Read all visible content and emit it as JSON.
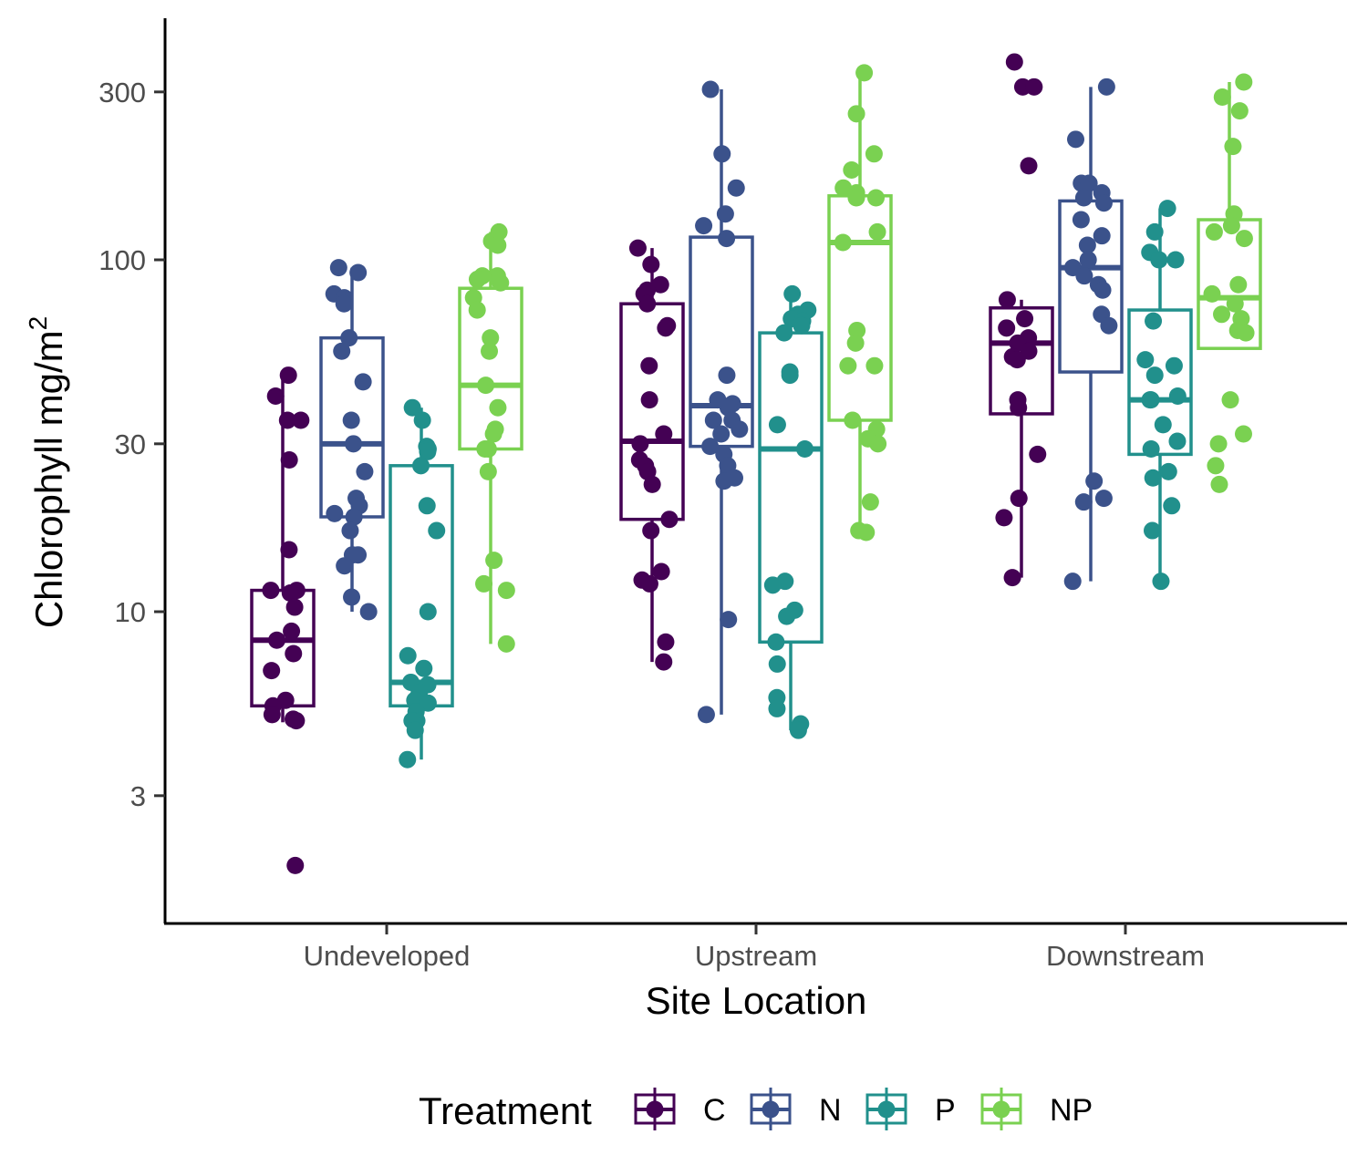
{
  "chart_data": {
    "type": "boxplot",
    "title": "",
    "xlabel": "Site Location",
    "ylabel": {
      "text": "Chlorophyll  mg/m",
      "superscript": "2"
    },
    "y_scale": "log10",
    "ylim": [
      1.75,
      420
    ],
    "y_ticks": [
      3,
      10,
      30,
      100,
      300
    ],
    "y_tick_labels": [
      "3",
      "10",
      "30",
      "100",
      "300"
    ],
    "categories": [
      "Undeveloped",
      "Upstream",
      "Downstream"
    ],
    "grid": false,
    "legend": {
      "title": "Treatment",
      "position": "bottom"
    },
    "series": [
      {
        "name": "C",
        "color": "#440154",
        "boxes": [
          {
            "min": 4.85,
            "q1": 5.4,
            "median": 8.3,
            "q3": 11.5,
            "max": 47
          },
          {
            "min": 7.2,
            "q1": 18.3,
            "median": 30.5,
            "q3": 75,
            "max": 108
          },
          {
            "min": 12.5,
            "q1": 36.5,
            "median": 58,
            "q3": 73,
            "max": 77
          }
        ],
        "points": [
          [
            47,
            41,
            35,
            35,
            27,
            15,
            11.5,
            11.5,
            11.3,
            10.3,
            8.8,
            8.3,
            7.6,
            6.8,
            5.6,
            5.4,
            5.1,
            4.95,
            4.9,
            1.9
          ],
          [
            108,
            97,
            85,
            82,
            80,
            75,
            65,
            64,
            50,
            40,
            32,
            30,
            27,
            26,
            25,
            23,
            18.3,
            17,
            13,
            12.3,
            12,
            8.2,
            7.2
          ],
          [
            365,
            310,
            310,
            185,
            77,
            68,
            64,
            60,
            58,
            55,
            53,
            52,
            40,
            38,
            28,
            21,
            18.5,
            12.5
          ]
        ]
      },
      {
        "name": "N",
        "color": "#3b528b",
        "boxes": [
          {
            "min": 10,
            "q1": 18.6,
            "median": 30,
            "q3": 60,
            "max": 95
          },
          {
            "min": 5.1,
            "q1": 29.5,
            "median": 38.5,
            "q3": 116,
            "max": 305
          },
          {
            "min": 12.2,
            "q1": 48,
            "median": 95,
            "q3": 147,
            "max": 310
          }
        ],
        "points": [
          [
            95,
            92,
            80,
            78,
            75,
            60,
            55,
            45,
            35,
            30,
            25,
            21,
            20,
            19,
            18.6,
            17,
            14.5,
            14.5,
            13.5,
            11,
            10
          ],
          [
            305,
            200,
            160,
            135,
            125,
            115,
            47,
            40,
            39,
            38,
            35,
            35,
            33,
            32,
            29.5,
            28,
            26,
            24,
            23.5,
            9.5,
            5.1
          ],
          [
            310,
            220,
            165,
            165,
            155,
            150,
            145,
            130,
            117,
            110,
            100,
            95,
            90,
            85,
            82,
            70,
            65,
            23.5,
            21,
            20.5,
            12.2
          ]
        ]
      },
      {
        "name": "P",
        "color": "#21908c",
        "boxes": [
          {
            "min": 3.8,
            "q1": 5.4,
            "median": 6.3,
            "q3": 26,
            "max": 38
          },
          {
            "min": 4.6,
            "q1": 8.2,
            "median": 29,
            "q3": 62,
            "max": 80
          },
          {
            "min": 12.2,
            "q1": 28,
            "median": 40,
            "q3": 72,
            "max": 140
          }
        ],
        "points": [
          [
            38,
            35,
            29.5,
            29,
            28.5,
            26,
            20,
            17,
            10,
            7.5,
            6.9,
            6.3,
            6.2,
            5.9,
            5.6,
            5.5,
            5.2,
            4.9,
            4.9,
            4.6,
            3.8
          ],
          [
            80,
            72,
            70,
            68,
            67,
            65,
            62,
            48,
            47,
            34,
            29,
            12.2,
            11.9,
            10.1,
            9.7,
            8.2,
            7.1,
            5.7,
            5.3,
            4.8,
            4.6
          ],
          [
            140,
            120,
            105,
            100,
            100,
            67,
            52,
            50,
            47,
            41,
            40,
            40,
            34,
            30.5,
            29,
            25,
            24,
            20,
            17,
            12.2
          ]
        ]
      },
      {
        "name": "NP",
        "color": "#7ad151",
        "boxes": [
          {
            "min": 8.1,
            "q1": 29,
            "median": 44,
            "q3": 83,
            "max": 120
          },
          {
            "min": 17,
            "q1": 35,
            "median": 112,
            "q3": 152,
            "max": 340
          },
          {
            "min": 56,
            "q1": 56,
            "median": 78,
            "q3": 130,
            "max": 320
          }
        ],
        "points": [
          [
            120,
            113,
            110,
            90,
            90,
            88,
            86,
            78,
            72,
            60,
            55,
            44,
            38,
            33,
            32,
            29,
            29,
            25,
            14,
            12,
            11.5,
            8.1
          ],
          [
            340,
            260,
            200,
            180,
            160,
            155,
            150,
            150,
            120,
            112,
            63,
            58,
            50,
            50,
            35,
            33,
            31,
            30,
            20.5,
            17,
            16.8
          ],
          [
            320,
            290,
            265,
            210,
            135,
            125,
            120,
            115,
            85,
            80,
            75,
            70,
            68,
            63,
            62,
            40,
            32,
            30,
            26,
            23
          ]
        ]
      }
    ]
  }
}
